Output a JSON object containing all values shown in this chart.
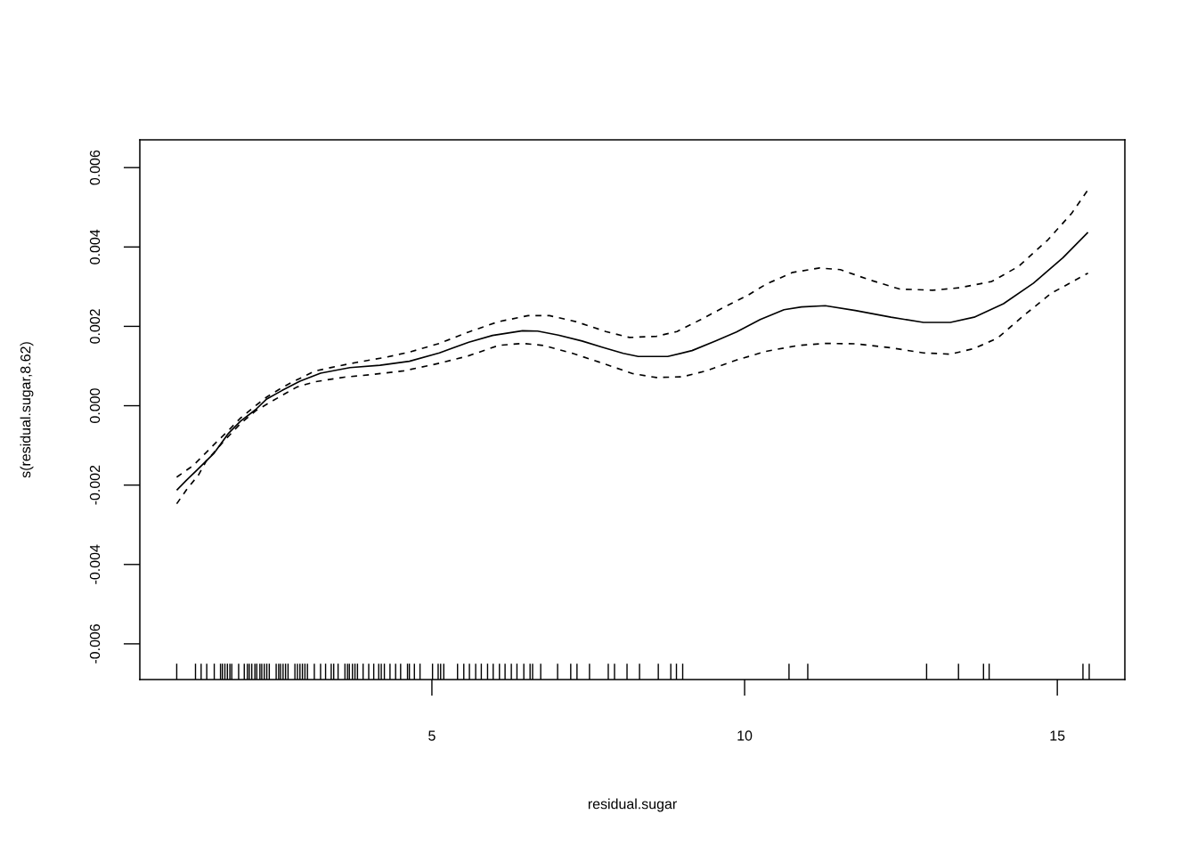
{
  "chart_data": {
    "type": "line",
    "xlabel": "residual.sugar",
    "ylabel": "s(residual.sugar,8.62)",
    "xlim": [
      0.33,
      16.08
    ],
    "ylim": [
      -0.0069,
      0.0067
    ],
    "xticks": [
      5,
      10,
      15
    ],
    "yticks": [
      -0.006,
      -0.004,
      -0.002,
      {
        "value": 0,
        "label": "0.000"
      },
      0.002,
      0.004,
      0.006
    ],
    "series": [
      {
        "color": "#000000",
        "line_style": "solid",
        "x": [
          0.92,
          1.08,
          1.25,
          1.51,
          1.75,
          1.94,
          2.18,
          2.36,
          2.6,
          2.89,
          3.22,
          3.69,
          4.17,
          4.64,
          5.12,
          5.59,
          5.97,
          6.45,
          6.69,
          7.02,
          7.4,
          7.73,
          8.06,
          8.3,
          8.77,
          9.16,
          9.53,
          9.87,
          10.25,
          10.63,
          10.91,
          11.29,
          11.77,
          12.34,
          12.86,
          13.29,
          13.67,
          14.14,
          14.62,
          15.09,
          15.49
        ],
        "values": [
          -0.00213,
          -0.00187,
          -0.00161,
          -0.00121,
          -0.00069,
          -0.00039,
          -0.0001,
          0.00017,
          0.00038,
          0.00062,
          0.00082,
          0.00096,
          0.00102,
          0.00112,
          0.00133,
          0.0016,
          0.00177,
          0.00189,
          0.00188,
          0.00178,
          0.00163,
          0.00147,
          0.00132,
          0.00124,
          0.00124,
          0.00139,
          0.00163,
          0.00186,
          0.00217,
          0.00242,
          0.00249,
          0.00252,
          0.0024,
          0.00223,
          0.0021,
          0.0021,
          0.00223,
          0.00257,
          0.00309,
          0.00373,
          0.00437
        ]
      },
      {
        "color": "#000000",
        "line_style": "dashed",
        "x": [
          0.92,
          1.18,
          1.39,
          1.56,
          1.75,
          1.94,
          2.18,
          2.36,
          2.6,
          2.75,
          2.93,
          3.12,
          3.41,
          3.79,
          4.26,
          4.64,
          5.12,
          5.59,
          6.07,
          6.54,
          6.88,
          7.3,
          7.78,
          8.16,
          8.59,
          8.92,
          9.3,
          9.68,
          10.06,
          10.34,
          10.77,
          11.2,
          11.53,
          12.0,
          12.48,
          13.0,
          13.43,
          13.95,
          14.38,
          14.85,
          15.23,
          15.49
        ],
        "values": [
          -0.0018,
          -0.00151,
          -0.00118,
          -0.00091,
          -0.00062,
          -0.00031,
          0.0,
          0.00022,
          0.00045,
          0.00058,
          0.00072,
          0.00087,
          0.00097,
          0.00109,
          0.00122,
          0.00135,
          0.00157,
          0.00186,
          0.00212,
          0.00227,
          0.00227,
          0.00212,
          0.00187,
          0.00172,
          0.00175,
          0.00187,
          0.00217,
          0.00249,
          0.00279,
          0.00306,
          0.00336,
          0.00347,
          0.00343,
          0.00317,
          0.00294,
          0.00291,
          0.00297,
          0.00313,
          0.00351,
          0.00418,
          0.00485,
          0.00544
        ]
      },
      {
        "color": "#000000",
        "line_style": "dashed",
        "x": [
          0.92,
          1.08,
          1.27,
          1.39,
          1.56,
          1.68,
          1.94,
          2.18,
          2.46,
          2.84,
          3.12,
          3.6,
          4.07,
          4.55,
          5.12,
          5.59,
          6.07,
          6.45,
          6.78,
          7.25,
          7.73,
          8.21,
          8.59,
          9.01,
          9.39,
          9.87,
          10.34,
          10.86,
          11.29,
          11.77,
          12.34,
          12.86,
          13.29,
          13.67,
          14.05,
          14.43,
          14.9,
          15.49
        ],
        "values": [
          -0.00247,
          -0.00211,
          -0.00174,
          -0.0014,
          -0.0011,
          -0.00088,
          -0.00045,
          -0.00013,
          0.00013,
          0.00047,
          0.0006,
          0.00072,
          0.00079,
          0.00088,
          0.00107,
          0.00126,
          0.00152,
          0.00157,
          0.00152,
          0.00132,
          0.00107,
          0.00081,
          0.00071,
          0.00073,
          0.00088,
          0.00115,
          0.00137,
          0.00152,
          0.00157,
          0.00156,
          0.00146,
          0.00133,
          0.0013,
          0.00144,
          0.00171,
          0.00223,
          0.00283,
          0.00334
        ]
      },
      {
        "type": "bar",
        "color": "#000000",
        "x": [
          0.92,
          1.22,
          1.31,
          1.4,
          1.52,
          1.62,
          1.65,
          1.69,
          1.73,
          1.77,
          1.8,
          1.91,
          2.0,
          2.05,
          2.08,
          2.12,
          2.17,
          2.2,
          2.25,
          2.28,
          2.32,
          2.36,
          2.4,
          2.51,
          2.55,
          2.58,
          2.62,
          2.66,
          2.7,
          2.81,
          2.85,
          2.89,
          2.93,
          2.97,
          3.01,
          3.12,
          3.22,
          3.3,
          3.39,
          3.43,
          3.5,
          3.61,
          3.65,
          3.68,
          3.73,
          3.77,
          3.81,
          3.9,
          3.99,
          4.07,
          4.15,
          4.19,
          4.24,
          4.33,
          4.42,
          4.5,
          4.61,
          4.64,
          4.72,
          4.81,
          5.01,
          5.1,
          5.14,
          5.19,
          5.41,
          5.51,
          5.6,
          5.7,
          5.79,
          5.89,
          5.98,
          6.08,
          6.17,
          6.27,
          6.36,
          6.47,
          6.57,
          6.61,
          6.74,
          7.01,
          7.22,
          7.32,
          7.52,
          7.82,
          7.92,
          8.12,
          8.32,
          8.62,
          8.82,
          8.91,
          9.01,
          10.71,
          11.01,
          12.91,
          13.42,
          13.82,
          13.91,
          15.41,
          15.51
        ],
        "base": [
          -0.0069,
          -0.0069,
          -0.0069,
          -0.0069,
          -0.0069,
          -0.0069,
          -0.0069,
          -0.0069,
          -0.0069,
          -0.0069,
          -0.0069,
          -0.0069,
          -0.0069,
          -0.0069,
          -0.0069,
          -0.0069,
          -0.0069,
          -0.0069,
          -0.0069,
          -0.0069,
          -0.0069,
          -0.0069,
          -0.0069,
          -0.0069,
          -0.0069,
          -0.0069,
          -0.0069,
          -0.0069,
          -0.0069,
          -0.0069,
          -0.0069,
          -0.0069,
          -0.0069,
          -0.0069,
          -0.0069,
          -0.0069,
          -0.0069,
          -0.0069,
          -0.0069,
          -0.0069,
          -0.0069,
          -0.0069,
          -0.0069,
          -0.0069,
          -0.0069,
          -0.0069,
          -0.0069,
          -0.0069,
          -0.0069,
          -0.0069,
          -0.0069,
          -0.0069,
          -0.0069,
          -0.0069,
          -0.0069,
          -0.0069,
          -0.0069,
          -0.0069,
          -0.0069,
          -0.0069,
          -0.0069,
          -0.0069,
          -0.0069,
          -0.0069,
          -0.0069,
          -0.0069,
          -0.0069,
          -0.0069,
          -0.0069,
          -0.0069,
          -0.0069,
          -0.0069,
          -0.0069,
          -0.0069,
          -0.0069,
          -0.0069,
          -0.0069,
          -0.0069,
          -0.0069,
          -0.0069,
          -0.0069,
          -0.0069,
          -0.0069,
          -0.0069,
          -0.0069,
          -0.0069,
          -0.0069,
          -0.0069,
          -0.0069,
          -0.0069,
          -0.0069,
          -0.0069,
          -0.0069,
          -0.0069,
          -0.0069,
          -0.0069,
          -0.0069,
          -0.0069,
          -0.0069
        ],
        "values": [
          0.0004,
          0.0004,
          0.0004,
          0.0004,
          0.0004,
          0.0004,
          0.0004,
          0.0004,
          0.0004,
          0.0004,
          0.0004,
          0.0004,
          0.0004,
          0.0004,
          0.0004,
          0.0004,
          0.0004,
          0.0004,
          0.0004,
          0.0004,
          0.0004,
          0.0004,
          0.0004,
          0.0004,
          0.0004,
          0.0004,
          0.0004,
          0.0004,
          0.0004,
          0.0004,
          0.0004,
          0.0004,
          0.0004,
          0.0004,
          0.0004,
          0.0004,
          0.0004,
          0.0004,
          0.0004,
          0.0004,
          0.0004,
          0.0004,
          0.0004,
          0.0004,
          0.0004,
          0.0004,
          0.0004,
          0.0004,
          0.0004,
          0.0004,
          0.0004,
          0.0004,
          0.0004,
          0.0004,
          0.0004,
          0.0004,
          0.0004,
          0.0004,
          0.0004,
          0.0004,
          0.0004,
          0.0004,
          0.0004,
          0.0004,
          0.0004,
          0.0004,
          0.0004,
          0.0004,
          0.0004,
          0.0004,
          0.0004,
          0.0004,
          0.0004,
          0.0004,
          0.0004,
          0.0004,
          0.0004,
          0.0004,
          0.0004,
          0.0004,
          0.0004,
          0.0004,
          0.0004,
          0.0004,
          0.0004,
          0.0004,
          0.0004,
          0.0004,
          0.0004,
          0.0004,
          0.0004,
          0.0004,
          0.0004,
          0.0004,
          0.0004,
          0.0004,
          0.0004,
          0.0004,
          0.0004
        ]
      }
    ]
  }
}
